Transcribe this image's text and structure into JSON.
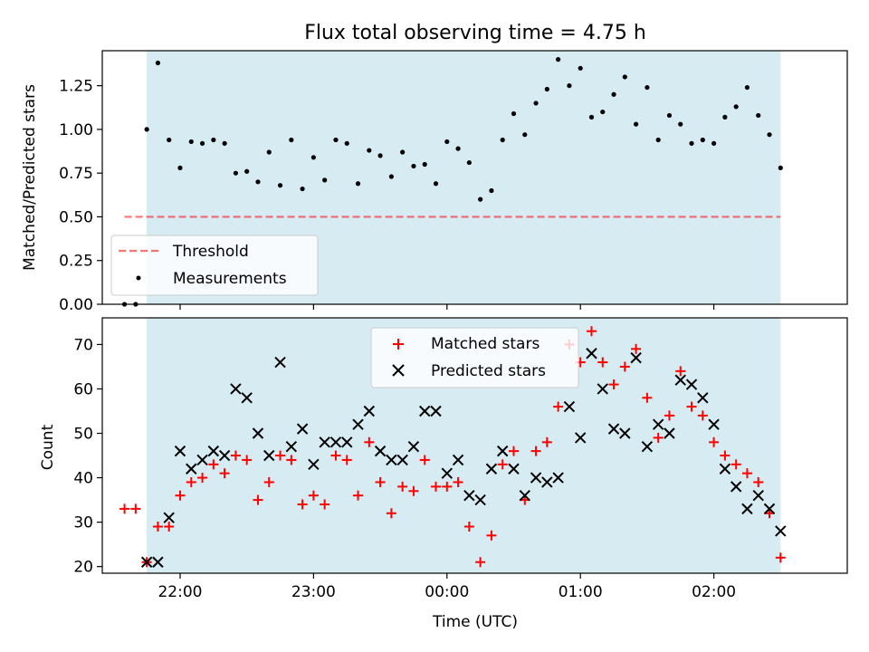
{
  "title": "Flux total observing time = 4.75 h",
  "colors": {
    "observing_span": "#add8e6",
    "threshold": "#ff0000",
    "measurements": "#000000",
    "matched": "#ff0000",
    "predicted": "#000000"
  },
  "chart_data": [
    {
      "type": "scatter",
      "panel": "top",
      "title": "Flux total observing time = 4.75 h",
      "ylabel": "Matched/Predicted stars",
      "xlabel": "",
      "xlim": [
        "21:25",
        "03:00"
      ],
      "ylim": [
        0.0,
        1.45
      ],
      "y_ticks": [
        "0.00",
        "0.25",
        "0.50",
        "0.75",
        "1.00",
        "1.25"
      ],
      "x_ticks": [
        "22:00",
        "23:00",
        "00:00",
        "01:00",
        "02:00"
      ],
      "observing_span": [
        "21:45",
        "02:30"
      ],
      "threshold": {
        "name": "Threshold",
        "value": 0.5,
        "x_range": [
          "21:35",
          "02:30"
        ]
      },
      "legend_position": "lower-left",
      "legend": [
        "Threshold",
        "Measurements"
      ],
      "series": [
        {
          "name": "Measurements",
          "x": [
            "21:35",
            "21:40",
            "21:45",
            "21:50",
            "21:55",
            "22:00",
            "22:05",
            "22:10",
            "22:15",
            "22:20",
            "22:25",
            "22:30",
            "22:35",
            "22:40",
            "22:45",
            "22:50",
            "22:55",
            "23:00",
            "23:05",
            "23:10",
            "23:15",
            "23:20",
            "23:25",
            "23:30",
            "23:35",
            "23:40",
            "23:45",
            "23:50",
            "23:55",
            "00:00",
            "00:05",
            "00:10",
            "00:15",
            "00:20",
            "00:25",
            "00:30",
            "00:35",
            "00:40",
            "00:45",
            "00:50",
            "00:55",
            "01:00",
            "01:05",
            "01:10",
            "01:15",
            "01:20",
            "01:25",
            "01:30",
            "01:35",
            "01:40",
            "01:45",
            "01:50",
            "01:55",
            "02:00",
            "02:05",
            "02:10",
            "02:15",
            "02:20",
            "02:25",
            "02:30"
          ],
          "y": [
            0.0,
            0.0,
            1.0,
            1.38,
            0.94,
            0.78,
            0.93,
            0.92,
            0.94,
            0.92,
            0.75,
            0.76,
            0.7,
            0.87,
            0.68,
            0.94,
            0.66,
            0.84,
            0.71,
            0.94,
            0.92,
            0.69,
            0.88,
            0.85,
            0.73,
            0.87,
            0.79,
            0.8,
            0.69,
            0.93,
            0.89,
            0.81,
            0.6,
            0.65,
            0.94,
            1.09,
            0.97,
            1.15,
            1.23,
            1.4,
            1.25,
            1.35,
            1.07,
            1.1,
            1.2,
            1.3,
            1.03,
            1.24,
            0.94,
            1.08,
            1.03,
            0.92,
            0.94,
            0.92,
            1.07,
            1.13,
            1.24,
            1.08,
            0.97,
            0.78
          ]
        }
      ]
    },
    {
      "type": "scatter",
      "panel": "bottom",
      "title": "",
      "ylabel": "Count",
      "xlabel": "Time (UTC)",
      "xlim": [
        "21:25",
        "03:00"
      ],
      "ylim": [
        18.5,
        76
      ],
      "y_ticks": [
        "20",
        "30",
        "40",
        "50",
        "60",
        "70"
      ],
      "x_ticks": [
        "22:00",
        "23:00",
        "00:00",
        "01:00",
        "02:00"
      ],
      "observing_span": [
        "21:45",
        "02:30"
      ],
      "legend_position": "upper-center",
      "legend": [
        "Matched stars",
        "Predicted stars"
      ],
      "series": [
        {
          "name": "Matched stars",
          "marker": "+",
          "x": [
            "21:35",
            "21:40",
            "21:45",
            "21:50",
            "21:55",
            "22:00",
            "22:05",
            "22:10",
            "22:15",
            "22:20",
            "22:25",
            "22:30",
            "22:35",
            "22:40",
            "22:45",
            "22:50",
            "22:55",
            "23:00",
            "23:05",
            "23:10",
            "23:15",
            "23:20",
            "23:25",
            "23:30",
            "23:35",
            "23:40",
            "23:45",
            "23:50",
            "23:55",
            "00:00",
            "00:05",
            "00:10",
            "00:15",
            "00:20",
            "00:25",
            "00:30",
            "00:35",
            "00:40",
            "00:45",
            "00:50",
            "00:55",
            "01:00",
            "01:05",
            "01:10",
            "01:15",
            "01:20",
            "01:25",
            "01:30",
            "01:35",
            "01:40",
            "01:45",
            "01:50",
            "01:55",
            "02:00",
            "02:05",
            "02:10",
            "02:15",
            "02:20",
            "02:25",
            "02:30"
          ],
          "y": [
            33,
            33,
            21,
            29,
            29,
            36,
            39,
            40,
            43,
            41,
            45,
            44,
            35,
            39,
            45,
            44,
            34,
            36,
            34,
            45,
            44,
            36,
            48,
            39,
            32,
            38,
            37,
            44,
            38,
            38,
            39,
            29,
            21,
            27,
            43,
            46,
            35,
            46,
            48,
            56,
            70,
            66,
            73,
            66,
            61,
            65,
            69,
            58,
            49,
            54,
            64,
            56,
            54,
            48,
            45,
            43,
            41,
            39,
            32,
            22
          ]
        },
        {
          "name": "Predicted stars",
          "marker": "x",
          "x": [
            "21:45",
            "21:50",
            "21:55",
            "22:00",
            "22:05",
            "22:10",
            "22:15",
            "22:20",
            "22:25",
            "22:30",
            "22:35",
            "22:40",
            "22:45",
            "22:50",
            "22:55",
            "23:00",
            "23:05",
            "23:10",
            "23:15",
            "23:20",
            "23:25",
            "23:30",
            "23:35",
            "23:40",
            "23:45",
            "23:50",
            "23:55",
            "00:00",
            "00:05",
            "00:10",
            "00:15",
            "00:20",
            "00:25",
            "00:30",
            "00:35",
            "00:40",
            "00:45",
            "00:50",
            "00:55",
            "01:00",
            "01:05",
            "01:10",
            "01:15",
            "01:20",
            "01:25",
            "01:30",
            "01:35",
            "01:40",
            "01:45",
            "01:50",
            "01:55",
            "02:00",
            "02:05",
            "02:10",
            "02:15",
            "02:20",
            "02:25",
            "02:30"
          ],
          "y": [
            21,
            21,
            31,
            46,
            42,
            44,
            46,
            45,
            60,
            58,
            50,
            45,
            66,
            47,
            51,
            43,
            48,
            48,
            48,
            52,
            55,
            46,
            44,
            44,
            47,
            55,
            55,
            41,
            44,
            36,
            35,
            42,
            46,
            42,
            36,
            40,
            39,
            40,
            56,
            49,
            68,
            60,
            51,
            50,
            67,
            47,
            52,
            50,
            62,
            61,
            58,
            52,
            42,
            38,
            33,
            36,
            33,
            28
          ]
        }
      ]
    }
  ]
}
